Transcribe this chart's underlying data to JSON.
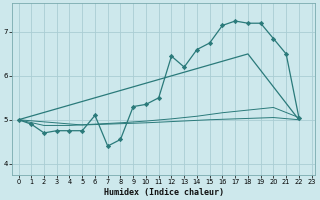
{
  "xlabel": "Humidex (Indice chaleur)",
  "bg_color": "#cde8ec",
  "grid_color": "#aacdd4",
  "line_color": "#2a7a7a",
  "xlim": [
    -0.5,
    23.3
  ],
  "ylim": [
    3.75,
    7.65
  ],
  "yticks": [
    4,
    5,
    6,
    7
  ],
  "xticks": [
    0,
    1,
    2,
    3,
    4,
    5,
    6,
    7,
    8,
    9,
    10,
    11,
    12,
    13,
    14,
    15,
    16,
    17,
    18,
    19,
    20,
    21,
    22,
    23
  ],
  "series": [
    {
      "x": [
        0,
        1,
        2,
        3,
        4,
        5,
        6,
        7,
        8,
        9,
        10,
        11,
        12,
        13,
        14,
        15,
        16,
        17,
        18,
        19,
        20,
        21,
        22
      ],
      "y": [
        5.0,
        4.9,
        4.7,
        4.75,
        4.75,
        4.75,
        5.1,
        4.4,
        4.55,
        5.3,
        5.35,
        5.5,
        6.45,
        6.2,
        6.6,
        6.75,
        7.15,
        7.25,
        7.2,
        7.2,
        6.85,
        6.5,
        5.05
      ],
      "marker": "D",
      "markersize": 2.2,
      "linewidth": 0.9
    },
    {
      "x": [
        0,
        18,
        22
      ],
      "y": [
        5.0,
        6.5,
        5.0
      ],
      "marker": null,
      "markersize": 0,
      "linewidth": 0.9
    },
    {
      "x": [
        0,
        2,
        4,
        6,
        8,
        10,
        12,
        14,
        16,
        18,
        20,
        22
      ],
      "y": [
        5.0,
        4.87,
        4.87,
        4.9,
        4.93,
        4.97,
        5.02,
        5.08,
        5.16,
        5.22,
        5.28,
        5.05
      ],
      "marker": null,
      "markersize": 0,
      "linewidth": 0.7
    },
    {
      "x": [
        0,
        5,
        10,
        15,
        20,
        22
      ],
      "y": [
        5.0,
        4.88,
        4.93,
        5.0,
        5.05,
        5.0
      ],
      "marker": null,
      "markersize": 0,
      "linewidth": 0.7
    }
  ]
}
